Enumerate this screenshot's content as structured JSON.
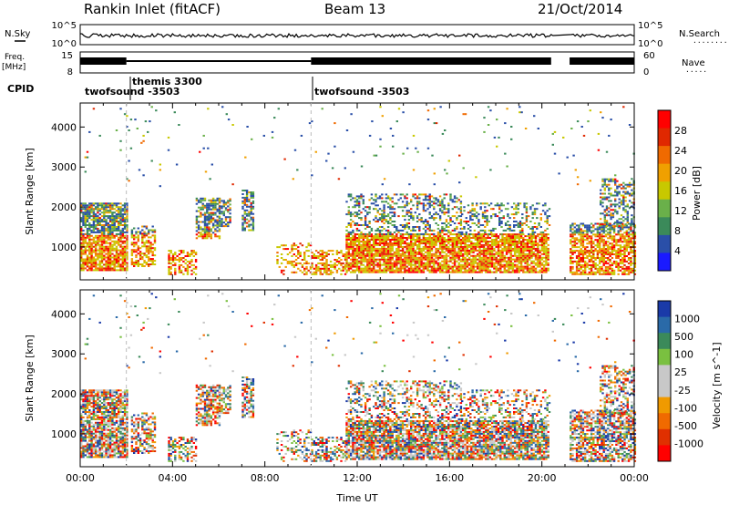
{
  "header": {
    "station": "Rankin Inlet (fitACF)",
    "beam": "Beam 13",
    "date": "21/Oct/2014"
  },
  "colors": {
    "power": [
      "#1a1aff",
      "#2a4fa8",
      "#3b8a5a",
      "#6ab04a",
      "#c8c800",
      "#f0a000",
      "#f06a00",
      "#e02800",
      "#ff0000"
    ],
    "velocity": [
      "#1a3aa8",
      "#2a6aa8",
      "#3b8a5a",
      "#7ac040",
      "#c8c8c8",
      "#c8c8c8",
      "#f09a00",
      "#f06a00",
      "#e03000",
      "#ff0000"
    ]
  },
  "left_labels": {
    "nsky": "N.Sky",
    "freq_top": "Freq.",
    "freq_unit": "[MHz]",
    "cpid": "CPID"
  },
  "right_labels": {
    "nsearch": "N.Search",
    "nsearch_dots": "........",
    "nave": "Nave",
    "nave_dots": "....."
  },
  "noise_axis": {
    "top": "10^5",
    "bottom": "10^0"
  },
  "freq_axis": {
    "top": "15",
    "bottom": "8"
  },
  "nave_axis": {
    "top": "60",
    "bottom": "0"
  },
  "cpid_segments": [
    {
      "label": "twofsound -3503",
      "start_hour": 0.0
    },
    {
      "label": "themis 3300",
      "start_hour": 2.0
    },
    {
      "label": "twofsound -3503",
      "start_hour": 10.0
    }
  ],
  "chart_data": [
    {
      "type": "heatmap",
      "name": "power",
      "ylabel": "Slant Range [km]",
      "ylim": [
        180,
        4600
      ],
      "yticks": [
        1000,
        2000,
        3000,
        4000
      ],
      "xlim": [
        0,
        24
      ],
      "colorbar": {
        "label": "Power [dB]",
        "ticks": [
          4,
          8,
          12,
          16,
          20,
          24,
          28
        ],
        "range": [
          0,
          30
        ]
      }
    },
    {
      "type": "heatmap",
      "name": "velocity",
      "ylabel": "Slant Range [km]",
      "ylim": [
        180,
        4600
      ],
      "yticks": [
        1000,
        2000,
        3000,
        4000
      ],
      "xlim": [
        0,
        24
      ],
      "xticks": [
        "00:00",
        "04:00",
        "08:00",
        "12:00",
        "16:00",
        "20:00",
        "00:00"
      ],
      "xlabel": "Time UT",
      "colorbar": {
        "label": "Velocity [m s^-1]",
        "ticks": [
          "1000",
          "500",
          "100",
          "25",
          "-25",
          "-100",
          "-500",
          "-1000"
        ]
      }
    }
  ]
}
